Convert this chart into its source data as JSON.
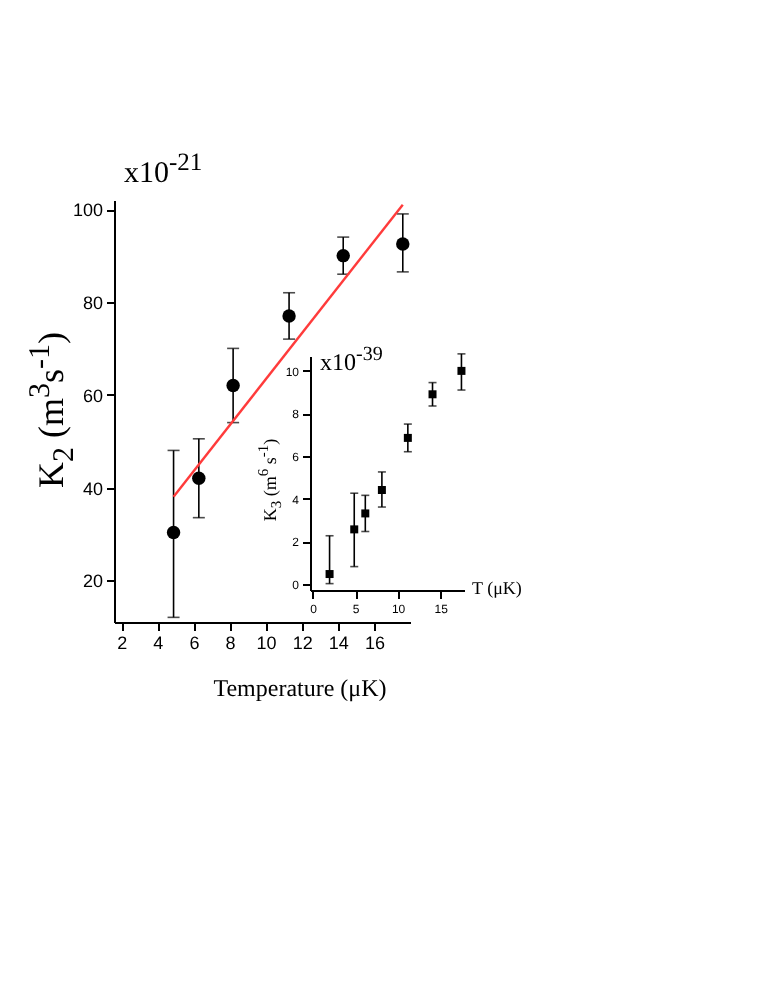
{
  "chart_data": [
    {
      "type": "scatter",
      "xlabel": "Temperature (μK)",
      "ylabel": "K$_{2}$ (m$^{3}$s$^{-1}$)",
      "annotations": [
        "x10$^{-21}$"
      ],
      "marker": "circle",
      "x": [
        4.9,
        6.3,
        8.2,
        11.3,
        14.3,
        17.6
      ],
      "xlim": [
        1.6,
        18
      ],
      "xticks": [
        2,
        4,
        6,
        8,
        10,
        12,
        14,
        16
      ],
      "ylim": [
        11,
        102
      ],
      "yticks": [
        20,
        40,
        60,
        80,
        100
      ],
      "series": [
        {
          "color": "#000000",
          "values": [
            30.3,
            42,
            62,
            77,
            90,
            92.5
          ],
          "errors": [
            [
              12,
              48
            ],
            [
              33.5,
              50.5
            ],
            [
              54,
              70
            ],
            [
              72,
              82
            ],
            [
              86,
              94
            ],
            [
              86.5,
              99
            ]
          ]
        },
        {
          "type": "line",
          "marker": "none",
          "color": "#ff3b3b",
          "x": [
            4.9,
            17.6
          ],
          "values": [
            38,
            101
          ]
        }
      ]
    },
    {
      "type": "scatter",
      "xlabel": "T (μK)",
      "ylabel": "K$_{3}$ (m$^{6}$ s$^{-1}$)",
      "annotations": [
        "x10$^{-39}$"
      ],
      "marker": "square",
      "x": [
        2.0,
        4.9,
        6.2,
        8.15,
        11.2,
        14.1,
        17.5
      ],
      "xlim": [
        -0.3,
        17.8
      ],
      "xticks": [
        0,
        5,
        10,
        15
      ],
      "ylim": [
        -0.3,
        10.7
      ],
      "yticks": [
        0,
        2,
        4,
        6,
        8,
        10
      ],
      "series": [
        {
          "color": "#000000",
          "values": [
            0.45,
            2.55,
            3.3,
            4.4,
            6.85,
            8.9,
            10
          ],
          "errors": [
            [
              0,
              2.25
            ],
            [
              0.8,
              4.25
            ],
            [
              2.45,
              4.15
            ],
            [
              3.6,
              5.25
            ],
            [
              6.2,
              7.5
            ],
            [
              8.35,
              9.45
            ],
            [
              9.1,
              10.8
            ]
          ]
        }
      ]
    }
  ]
}
